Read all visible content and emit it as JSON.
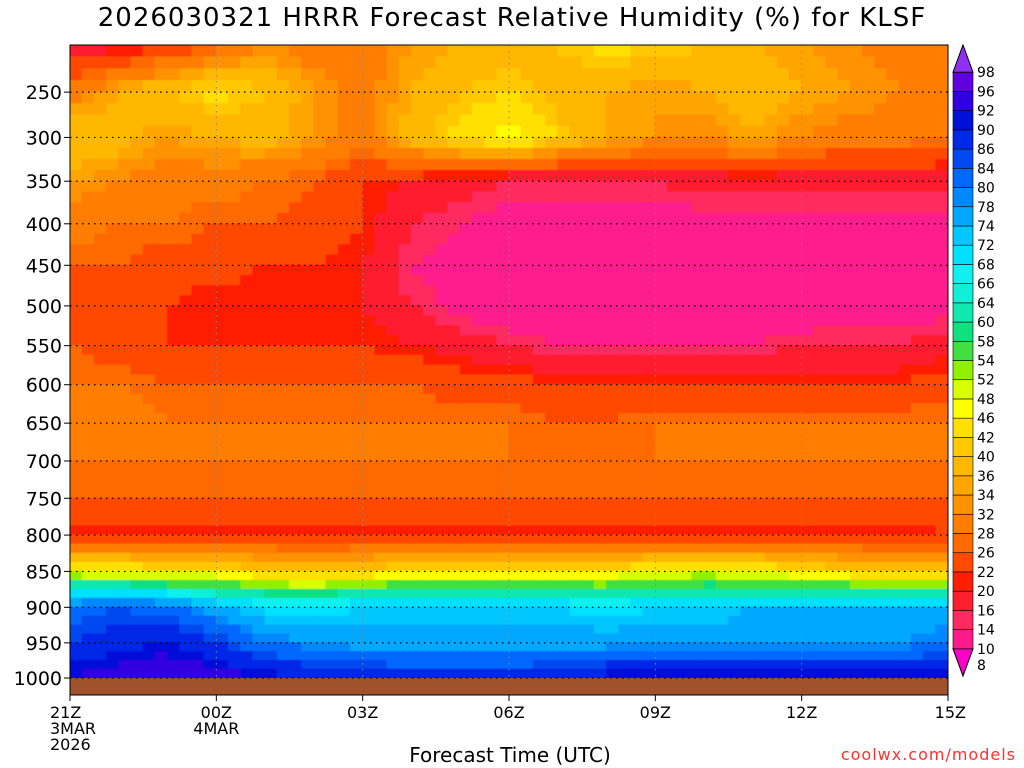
{
  "title": "2026030321 HRRR Forecast Relative Humidity (%) for KLSF",
  "credit": "coolwx.com/models",
  "chart_data": {
    "type": "heatmap",
    "title": "2026030321 HRRR Forecast Relative Humidity (%) for KLSF",
    "xlabel": "Forecast Time (UTC)",
    "ylabel": "",
    "x_hours": [
      0,
      1,
      2,
      3,
      4,
      5,
      6,
      7,
      8,
      9,
      10,
      11,
      12,
      13,
      14,
      15,
      16,
      17,
      18
    ],
    "x_ticks": [
      {
        "hour": 0,
        "lines": [
          "21Z",
          "3MAR",
          "2026"
        ]
      },
      {
        "hour": 3,
        "lines": [
          "00Z",
          "4MAR"
        ]
      },
      {
        "hour": 6,
        "lines": [
          "03Z"
        ]
      },
      {
        "hour": 9,
        "lines": [
          "06Z"
        ]
      },
      {
        "hour": 12,
        "lines": [
          "09Z"
        ]
      },
      {
        "hour": 15,
        "lines": [
          "12Z"
        ]
      },
      {
        "hour": 18,
        "lines": [
          "15Z"
        ]
      }
    ],
    "y_ticks": [
      "250",
      "300",
      "350",
      "400",
      "450",
      "500",
      "550",
      "600",
      "650",
      "700",
      "750",
      "800",
      "850",
      "900",
      "950",
      "1000"
    ],
    "levels_hpa": [
      200,
      250,
      300,
      350,
      400,
      450,
      500,
      550,
      600,
      650,
      700,
      750,
      800,
      850,
      900,
      950,
      1000
    ],
    "rh_percent": [
      [
        18,
        18,
        22,
        26,
        32,
        30,
        28,
        34,
        36,
        38,
        40,
        44,
        42,
        40,
        36,
        34,
        32,
        30,
        28
      ],
      [
        30,
        36,
        40,
        44,
        40,
        34,
        30,
        36,
        40,
        42,
        38,
        36,
        34,
        36,
        38,
        36,
        34,
        32,
        30
      ],
      [
        40,
        38,
        34,
        36,
        38,
        34,
        30,
        38,
        44,
        48,
        42,
        36,
        34,
        32,
        36,
        32,
        30,
        30,
        28
      ],
      [
        34,
        32,
        30,
        30,
        28,
        26,
        22,
        20,
        18,
        16,
        16,
        16,
        16,
        18,
        18,
        18,
        18,
        18,
        18
      ],
      [
        30,
        28,
        28,
        26,
        26,
        24,
        22,
        16,
        14,
        12,
        12,
        12,
        12,
        12,
        12,
        12,
        12,
        12,
        12
      ],
      [
        26,
        26,
        24,
        24,
        22,
        22,
        20,
        14,
        12,
        10,
        10,
        10,
        10,
        10,
        10,
        12,
        12,
        12,
        12
      ],
      [
        24,
        22,
        22,
        20,
        20,
        20,
        20,
        16,
        12,
        10,
        10,
        10,
        10,
        10,
        10,
        10,
        12,
        12,
        12
      ],
      [
        26,
        24,
        22,
        22,
        22,
        22,
        22,
        20,
        18,
        16,
        14,
        14,
        14,
        14,
        14,
        16,
        16,
        16,
        18
      ],
      [
        28,
        28,
        26,
        26,
        26,
        26,
        26,
        26,
        24,
        24,
        22,
        22,
        22,
        22,
        22,
        22,
        22,
        22,
        24
      ],
      [
        30,
        30,
        28,
        28,
        28,
        28,
        28,
        28,
        28,
        28,
        26,
        26,
        28,
        28,
        28,
        28,
        28,
        28,
        28
      ],
      [
        28,
        28,
        28,
        28,
        28,
        28,
        28,
        28,
        28,
        28,
        28,
        28,
        28,
        28,
        28,
        28,
        28,
        28,
        28
      ],
      [
        26,
        26,
        26,
        26,
        26,
        26,
        26,
        26,
        26,
        26,
        26,
        26,
        26,
        26,
        26,
        26,
        26,
        26,
        26
      ],
      [
        20,
        20,
        20,
        20,
        20,
        20,
        20,
        20,
        20,
        20,
        20,
        20,
        20,
        20,
        20,
        20,
        20,
        20,
        22
      ],
      [
        48,
        46,
        44,
        44,
        42,
        40,
        42,
        44,
        44,
        44,
        44,
        44,
        46,
        50,
        46,
        44,
        42,
        40,
        38
      ],
      [
        82,
        84,
        82,
        76,
        70,
        70,
        72,
        72,
        72,
        72,
        72,
        70,
        72,
        72,
        74,
        74,
        74,
        74,
        76
      ],
      [
        86,
        88,
        90,
        86,
        80,
        78,
        76,
        76,
        76,
        76,
        76,
        76,
        76,
        76,
        76,
        78,
        78,
        78,
        80
      ],
      [
        92,
        94,
        96,
        94,
        92,
        90,
        90,
        88,
        88,
        88,
        90,
        92,
        92,
        92,
        92,
        92,
        92,
        92,
        92
      ]
    ],
    "colorbar": {
      "levels": [
        8,
        10,
        14,
        16,
        20,
        22,
        26,
        28,
        32,
        34,
        36,
        40,
        42,
        46,
        48,
        52,
        54,
        58,
        60,
        64,
        66,
        68,
        72,
        74,
        78,
        80,
        84,
        86,
        90,
        92,
        96,
        98
      ],
      "colors": [
        "#ff00c8",
        "#ff1a8c",
        "#ff2a60",
        "#ff1e2e",
        "#ff1e00",
        "#ff4a00",
        "#ff6a00",
        "#ff7d00",
        "#ff9200",
        "#ffa500",
        "#ffb700",
        "#ffc800",
        "#ffe000",
        "#ffff00",
        "#d8ff00",
        "#90f000",
        "#40e040",
        "#10e080",
        "#10e8b0",
        "#10f0d8",
        "#10f0f0",
        "#00e0ff",
        "#00c8ff",
        "#00a8ff",
        "#0088ff",
        "#0068ff",
        "#0048f0",
        "#0028e8",
        "#0010d8",
        "#3000e0",
        "#6000e0",
        "#9030f0"
      ]
    },
    "ground_color": "#a0522d",
    "grid": true
  }
}
